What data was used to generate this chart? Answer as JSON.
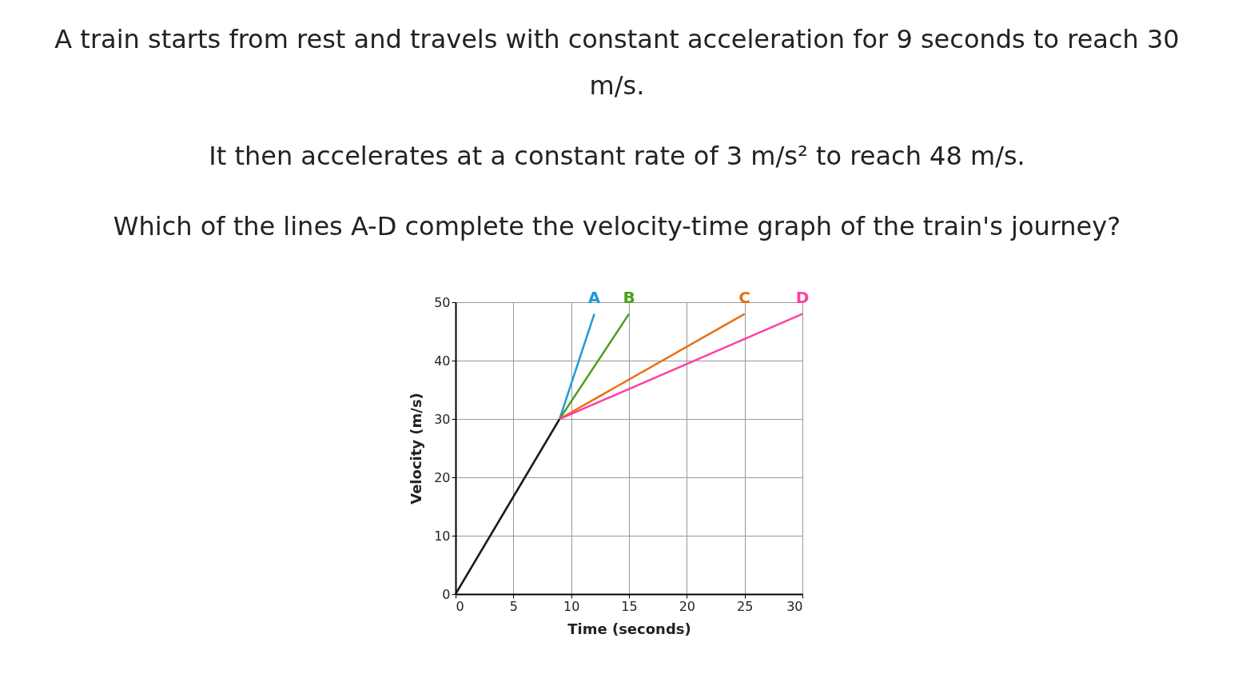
{
  "chart_data": {
    "type": "line",
    "title": "A train starts from rest and travels with constant acceleration for 9 seconds to reach 30 m/s.",
    "subtitle": "It then accelerates at a constant rate of 3 m/s² to reach 48 m/s.",
    "annotations": [
      "Which of the lines A-D complete the velocity-time graph of the train's journey?"
    ],
    "xlabel": "Time (seconds)",
    "ylabel": "Velocity (m/s)",
    "xlim": [
      0,
      30
    ],
    "ylim": [
      0,
      50
    ],
    "xticks": [
      0,
      5,
      10,
      15,
      20,
      25,
      30
    ],
    "yticks": [
      0,
      10,
      20,
      30,
      40,
      50
    ],
    "grid": true,
    "series": [
      {
        "color": "#1a1a1a",
        "x": [
          0,
          9
        ],
        "values": [
          0,
          30
        ]
      },
      {
        "name": "A",
        "color": "#1f9ad6",
        "x": [
          9,
          12
        ],
        "values": [
          30,
          48
        ]
      },
      {
        "name": "B",
        "color": "#4aa01a",
        "x": [
          9,
          15
        ],
        "values": [
          30,
          48
        ]
      },
      {
        "name": "C",
        "color": "#e8700f",
        "x": [
          9,
          25
        ],
        "values": [
          30,
          48
        ]
      },
      {
        "name": "D",
        "color": "#ff3fa4",
        "x": [
          9,
          30
        ],
        "values": [
          30,
          48
        ]
      }
    ]
  }
}
